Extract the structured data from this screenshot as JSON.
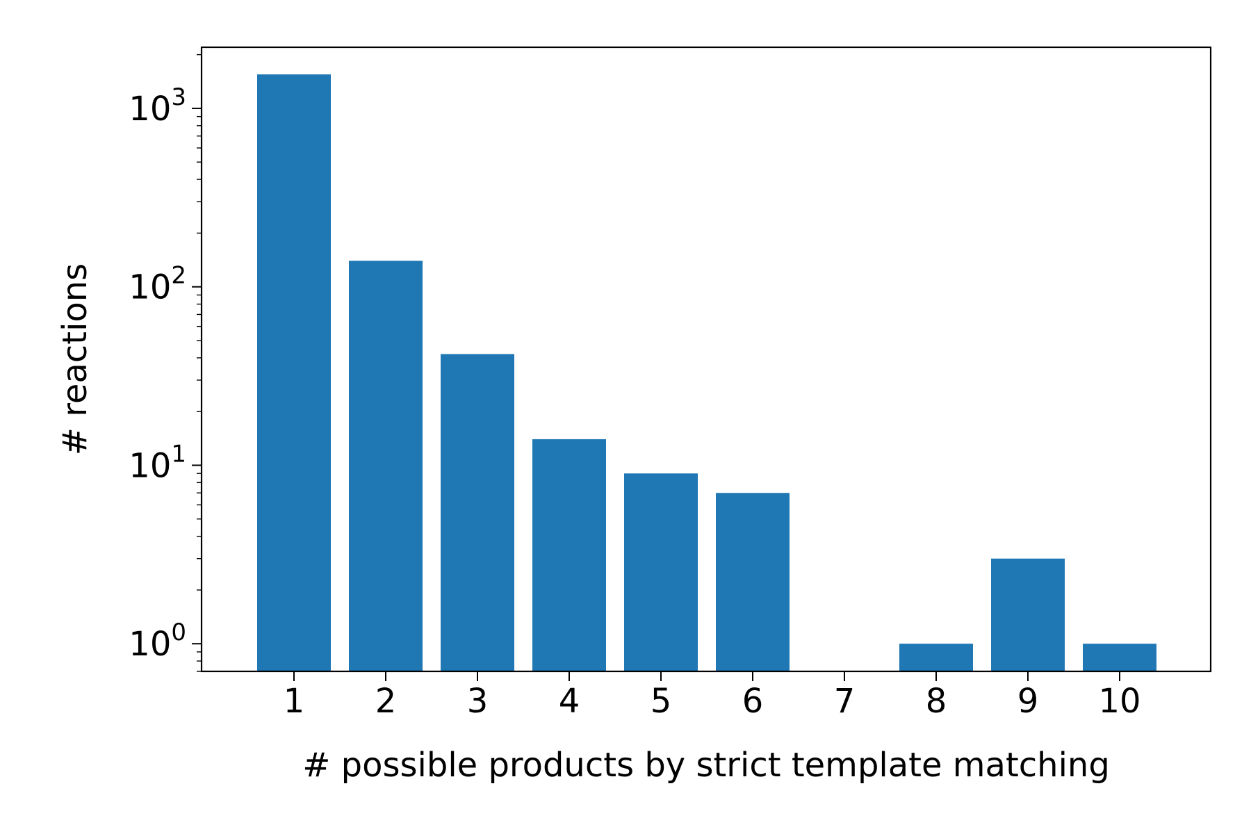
{
  "chart_data": {
    "type": "bar",
    "title": "",
    "xlabel": "# possible products by strict template matching",
    "ylabel": "# reactions",
    "yscale": "log",
    "categories": [
      "1",
      "2",
      "3",
      "4",
      "5",
      "6",
      "7",
      "8",
      "9",
      "10"
    ],
    "values": [
      1550,
      140,
      42,
      14,
      9,
      7,
      0,
      1,
      3,
      1
    ],
    "ylim": [
      0.7,
      2200
    ],
    "y_major_ticks": [
      1,
      10,
      100,
      1000
    ],
    "y_tick_labels": [
      {
        "base": "10",
        "exp": "0"
      },
      {
        "base": "10",
        "exp": "1"
      },
      {
        "base": "10",
        "exp": "2"
      },
      {
        "base": "10",
        "exp": "3"
      }
    ],
    "grid": false,
    "legend": "none",
    "bar_color": "#1f77b4"
  }
}
